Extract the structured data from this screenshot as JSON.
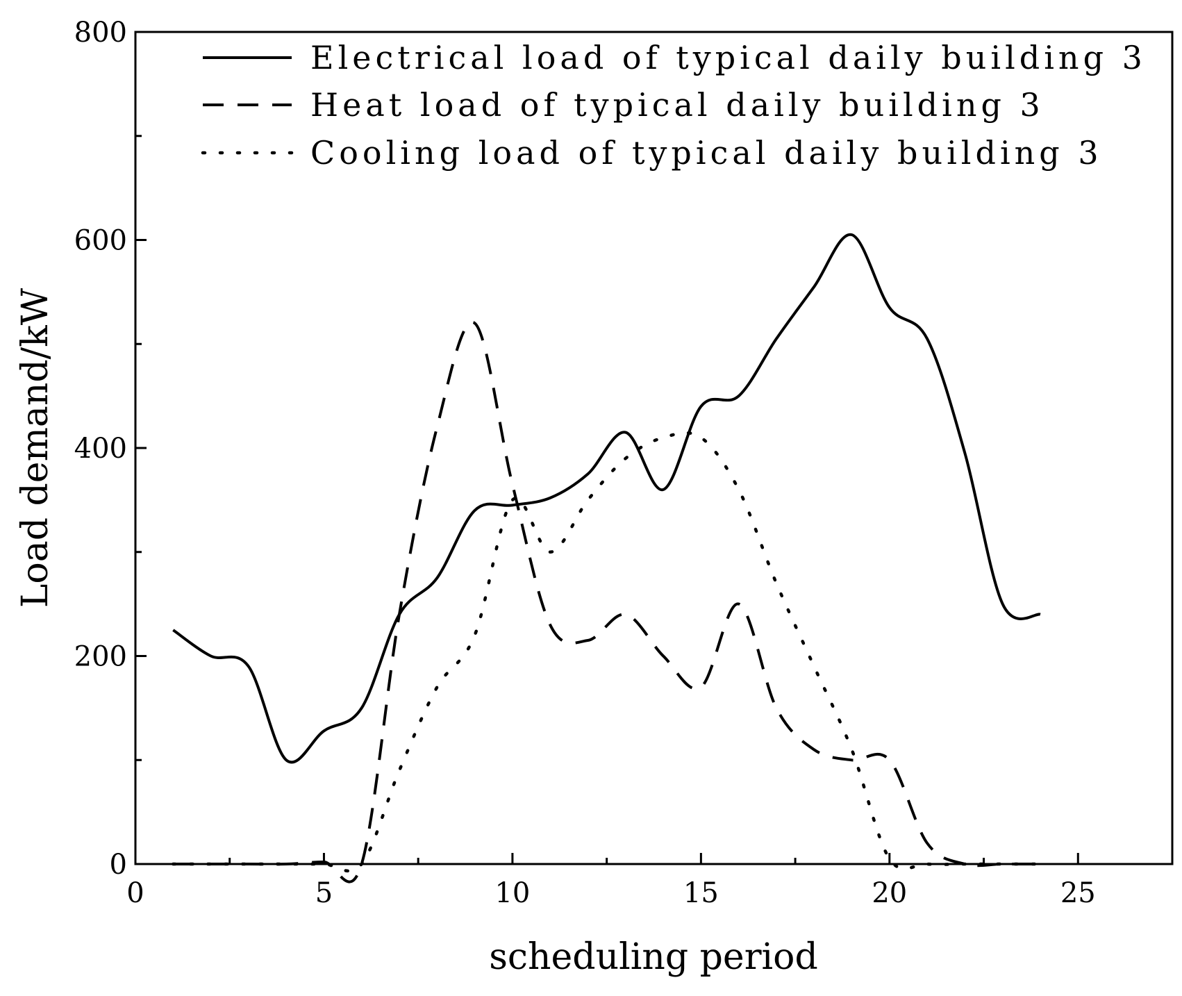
{
  "chart_data": {
    "type": "line",
    "title": "",
    "xlabel": "scheduling period",
    "ylabel": "Load demand/kW",
    "xlim": [
      0,
      27.5
    ],
    "ylim": [
      0,
      800
    ],
    "xticks": [
      0,
      5,
      10,
      15,
      20,
      25
    ],
    "yticks": [
      0,
      200,
      400,
      600,
      800
    ],
    "xtick_labels": [
      "0",
      "5",
      "10",
      "15",
      "20",
      "25"
    ],
    "ytick_labels": [
      "0",
      "200",
      "400",
      "600",
      "800"
    ],
    "legend_position": "top-right",
    "grid": false,
    "x": [
      1,
      2,
      3,
      4,
      5,
      6,
      7,
      8,
      9,
      10,
      11,
      12,
      13,
      14,
      15,
      16,
      17,
      18,
      19,
      20,
      21,
      22,
      23,
      24
    ],
    "series": [
      {
        "name": "Electrical load of typical daily building 3",
        "style": "solid",
        "values": [
          225,
          200,
          190,
          100,
          128,
          150,
          240,
          275,
          340,
          345,
          352,
          375,
          415,
          360,
          440,
          450,
          505,
          555,
          605,
          535,
          505,
          395,
          250,
          240
        ]
      },
      {
        "name": "Heat load of typical daily building 3",
        "style": "dashed",
        "values": [
          0,
          0,
          0,
          0,
          2,
          0,
          240,
          420,
          520,
          365,
          230,
          215,
          240,
          200,
          170,
          250,
          150,
          110,
          100,
          100,
          20,
          0,
          0,
          0
        ]
      },
      {
        "name": "Cooling load of typical daily building 3",
        "style": "dotted",
        "values": [
          0,
          0,
          0,
          0,
          0,
          0,
          90,
          170,
          220,
          350,
          300,
          350,
          390,
          410,
          410,
          360,
          270,
          190,
          110,
          5,
          0,
          0,
          0,
          0
        ]
      }
    ]
  }
}
